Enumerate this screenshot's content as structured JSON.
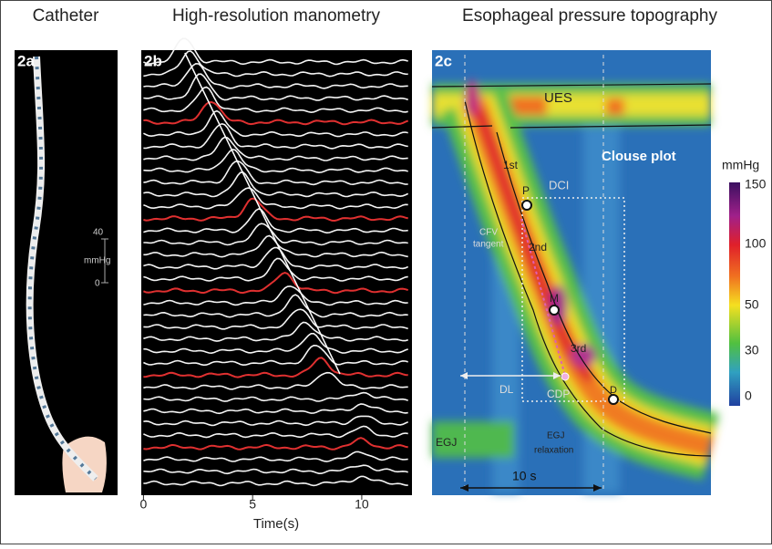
{
  "panels": [
    {
      "title": "Catheter",
      "label": "2a",
      "scale": {
        "ticks": [
          40,
          0
        ],
        "unit": "mmHg"
      }
    },
    {
      "title": "High-resolution manometry",
      "label": "2b",
      "x_axis": {
        "label": "Time(s)",
        "xlim": [
          -0.1,
          12.3
        ],
        "xticks": [
          0,
          5,
          10
        ]
      }
    },
    {
      "title": "Esophageal pressure topography",
      "label": "2c",
      "annotations": [
        "UES",
        "Clouse plot",
        "1st",
        "P",
        "DCI",
        "CFV",
        "tangent",
        "2nd",
        "M",
        "3rd",
        "DL",
        "CDP",
        "D",
        "EGJ",
        "EGJ",
        "relaxation",
        "10 s"
      ],
      "colorbar": {
        "unit": "mmHg",
        "ticks": [
          150,
          100,
          50,
          30,
          0
        ]
      }
    }
  ]
}
